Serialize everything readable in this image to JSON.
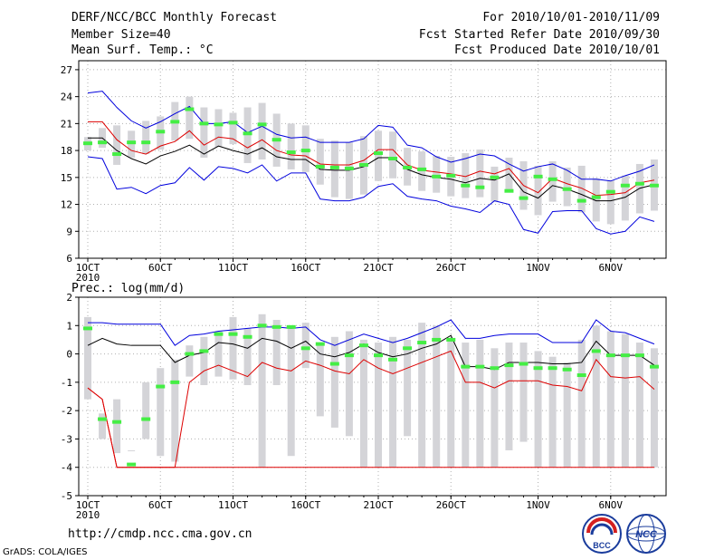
{
  "header": {
    "title": "DERF/NCC/BCC Monthly Forecast",
    "member_size": "Member Size=40",
    "variable": "Mean Surf. Temp.: °C",
    "period": "For 2010/10/01-2010/11/09",
    "started": "Fcst Started Refer Date 2010/09/30",
    "produced": "Fcst Produced Date 2010/10/01"
  },
  "footer": {
    "url": "http://cmdp.ncc.cma.gov.cn",
    "credit": "GrADS: COLA/IGES",
    "logo1_text": "BCC",
    "logo2_text": "NCC"
  },
  "colors": {
    "grid": "#b0b0b0",
    "bar": "#d4d4d8",
    "mean": "#44ee44",
    "upper": "#0000dd",
    "middle": "#000000",
    "lower": "#dd0000"
  },
  "chart_data": [
    {
      "type": "box",
      "title": "Mean Surf. Temp.: °C",
      "x_ticks": [
        "1OCT",
        "6OCT",
        "11OCT",
        "16OCT",
        "21OCT",
        "26OCT",
        "1NOV",
        "6NOV"
      ],
      "x_tick_days": [
        1,
        6,
        11,
        16,
        21,
        26,
        32,
        37
      ],
      "x_sublabel": "2010",
      "ylim": [
        6,
        28
      ],
      "yticks": [
        6,
        9,
        12,
        15,
        18,
        21,
        24,
        27
      ],
      "days": [
        1,
        2,
        3,
        4,
        5,
        6,
        7,
        8,
        9,
        10,
        11,
        12,
        13,
        14,
        15,
        16,
        17,
        18,
        19,
        20,
        21,
        22,
        23,
        24,
        25,
        26,
        27,
        28,
        29,
        30,
        31,
        32,
        33,
        34,
        35,
        36,
        37,
        38,
        39,
        40
      ],
      "bar_low": [
        18.0,
        18.3,
        16.4,
        17.2,
        17.6,
        18.1,
        19.1,
        19.3,
        17.2,
        18.4,
        18.7,
        16.6,
        17.0,
        16.2,
        15.9,
        15.6,
        14.2,
        12.8,
        12.6,
        13.1,
        14.6,
        14.9,
        14.1,
        13.5,
        13.3,
        12.9,
        12.7,
        12.8,
        12.3,
        13.6,
        11.4,
        10.8,
        12.3,
        11.8,
        11.1,
        10.1,
        9.8,
        10.2,
        11.0,
        11.3
      ],
      "bar_high": [
        19.5,
        20.5,
        20.8,
        20.2,
        21.3,
        21.8,
        23.4,
        24.0,
        22.8,
        22.6,
        22.2,
        22.8,
        23.3,
        22.1,
        21.0,
        20.8,
        19.3,
        19.1,
        18.9,
        19.6,
        20.2,
        20.1,
        18.3,
        17.9,
        17.4,
        17.3,
        17.7,
        18.1,
        16.2,
        17.2,
        16.8,
        16.3,
        16.8,
        16.1,
        16.3,
        14.9,
        14.7,
        15.2,
        16.5,
        17.0
      ],
      "ens_mean": [
        18.8,
        18.9,
        17.6,
        18.9,
        18.9,
        20.1,
        21.2,
        22.6,
        21.0,
        20.9,
        21.1,
        19.9,
        20.9,
        19.2,
        17.8,
        18.0,
        16.2,
        16.1,
        16.0,
        16.4,
        17.7,
        17.1,
        16.1,
        15.9,
        15.1,
        15.2,
        14.1,
        13.9,
        15.0,
        13.5,
        12.7,
        15.1,
        14.8,
        13.7,
        12.4,
        12.8,
        13.4,
        14.1,
        14.3,
        14.1
      ],
      "series": [
        {
          "name": "upper",
          "color": "#0000dd",
          "values": [
            24.4,
            24.6,
            22.8,
            21.3,
            20.5,
            21.2,
            22.1,
            22.9,
            21.0,
            21.0,
            21.2,
            20.0,
            20.7,
            19.8,
            19.4,
            19.5,
            18.9,
            18.9,
            18.9,
            19.3,
            20.8,
            20.6,
            18.6,
            18.3,
            17.3,
            16.7,
            17.1,
            17.6,
            17.4,
            16.5,
            15.7,
            16.2,
            16.5,
            15.8,
            14.8,
            14.8,
            14.6,
            15.2,
            15.7,
            16.4
          ]
        },
        {
          "name": "middle",
          "color": "#000000",
          "values": [
            19.4,
            19.4,
            18.0,
            17.1,
            16.5,
            17.4,
            17.9,
            18.6,
            17.6,
            18.5,
            18.0,
            17.6,
            18.3,
            17.3,
            17.0,
            17.0,
            15.9,
            15.8,
            15.8,
            16.2,
            17.2,
            17.2,
            15.9,
            15.3,
            15.0,
            14.8,
            14.4,
            14.9,
            14.7,
            15.4,
            13.4,
            12.7,
            14.1,
            13.7,
            13.1,
            12.4,
            12.4,
            12.8,
            13.8,
            14.2
          ]
        },
        {
          "name": "lower",
          "color": "#dd0000",
          "values": [
            21.2,
            21.2,
            19.2,
            18.0,
            17.6,
            18.5,
            19.0,
            20.2,
            18.6,
            19.5,
            19.3,
            18.3,
            19.2,
            18.0,
            17.5,
            17.4,
            16.5,
            16.4,
            16.4,
            16.9,
            18.1,
            18.1,
            16.4,
            15.8,
            15.6,
            15.4,
            15.1,
            15.7,
            15.4,
            16.0,
            14.1,
            13.3,
            14.9,
            14.3,
            13.8,
            13.0,
            13.1,
            13.3,
            14.4,
            14.7
          ]
        },
        {
          "name": "lowest",
          "color": "#0000dd",
          "values": [
            17.3,
            17.1,
            13.7,
            13.9,
            13.2,
            14.1,
            14.4,
            16.1,
            14.7,
            16.2,
            16.0,
            15.5,
            16.4,
            14.6,
            15.5,
            15.5,
            12.6,
            12.4,
            12.4,
            12.8,
            14.0,
            14.3,
            12.9,
            12.6,
            12.4,
            11.8,
            11.5,
            11.1,
            12.4,
            12.0,
            9.2,
            8.8,
            11.2,
            11.3,
            11.3,
            9.3,
            8.7,
            9.0,
            10.6,
            10.1
          ]
        }
      ]
    },
    {
      "type": "box",
      "title": "Prec.: log(mm/d)",
      "x_ticks": [
        "1OCT",
        "6OCT",
        "11OCT",
        "16OCT",
        "21OCT",
        "26OCT",
        "1NOV",
        "6NOV"
      ],
      "x_tick_days": [
        1,
        6,
        11,
        16,
        21,
        26,
        32,
        37
      ],
      "x_sublabel": "2010",
      "ylim": [
        -5,
        2
      ],
      "yticks": [
        -5,
        -4,
        -3,
        -2,
        -1,
        0,
        1,
        2
      ],
      "days": [
        1,
        2,
        3,
        4,
        5,
        6,
        7,
        8,
        9,
        10,
        11,
        12,
        13,
        14,
        15,
        16,
        17,
        18,
        19,
        20,
        21,
        22,
        23,
        24,
        25,
        26,
        27,
        28,
        29,
        30,
        31,
        32,
        33,
        34,
        35,
        36,
        37,
        38,
        39,
        40
      ],
      "bar_low": [
        -1.6,
        -3.0,
        -3.5,
        -3.3,
        -3.0,
        -3.6,
        -3.8,
        -0.8,
        -1.1,
        -0.8,
        -0.9,
        -1.1,
        -4.0,
        -1.1,
        -3.6,
        -0.5,
        -2.2,
        -2.6,
        -2.9,
        -4.0,
        -4.0,
        -4.0,
        -2.9,
        -4.0,
        -4.0,
        -4.0,
        -4.0,
        -4.0,
        -4.0,
        -3.4,
        -3.1,
        -4.0,
        -4.0,
        -4.0,
        -4.0,
        -4.0,
        -4.0,
        -4.0,
        -4.0,
        -4.0
      ],
      "bar_high": [
        1.3,
        -2.1,
        -1.6,
        -3.4,
        -1.0,
        -0.5,
        -0.2,
        0.3,
        0.6,
        0.8,
        1.3,
        0.9,
        1.4,
        1.2,
        0.9,
        1.1,
        0.3,
        0.6,
        0.8,
        0.5,
        0.4,
        0.6,
        0.5,
        1.1,
        1.0,
        0.5,
        0.4,
        0.5,
        0.2,
        0.4,
        0.4,
        0.1,
        -0.1,
        -0.3,
        0.5,
        1.0,
        0.8,
        0.7,
        0.4,
        0.2
      ],
      "ens_mean": [
        0.9,
        -2.3,
        -2.4,
        -3.9,
        -2.3,
        -1.15,
        -1.0,
        0.0,
        0.1,
        0.7,
        0.7,
        0.6,
        1.0,
        0.95,
        0.95,
        0.2,
        0.35,
        -0.35,
        -0.05,
        0.3,
        -0.05,
        -0.2,
        0.2,
        0.4,
        0.5,
        0.5,
        -0.45,
        -0.45,
        -0.5,
        -0.4,
        -0.35,
        -0.5,
        -0.5,
        -0.55,
        -0.75,
        0.1,
        -0.05,
        -0.05,
        -0.05,
        -0.45
      ],
      "series": [
        {
          "name": "upper",
          "color": "#0000dd",
          "values": [
            1.1,
            1.1,
            1.05,
            1.05,
            1.05,
            1.05,
            0.3,
            0.65,
            0.7,
            0.8,
            0.85,
            0.9,
            0.95,
            0.95,
            0.9,
            0.95,
            0.5,
            0.3,
            0.5,
            0.7,
            0.55,
            0.4,
            0.55,
            0.75,
            0.95,
            1.2,
            0.55,
            0.55,
            0.65,
            0.7,
            0.7,
            0.7,
            0.4,
            0.4,
            0.4,
            1.2,
            0.8,
            0.75,
            0.55,
            0.35
          ]
        },
        {
          "name": "middle",
          "color": "#000000",
          "values": [
            0.3,
            0.55,
            0.35,
            0.3,
            0.3,
            0.3,
            -0.3,
            -0.05,
            0.05,
            0.4,
            0.35,
            0.2,
            0.55,
            0.45,
            0.2,
            0.45,
            0.0,
            -0.1,
            0.05,
            0.35,
            0.05,
            -0.1,
            0.0,
            0.2,
            0.35,
            0.65,
            -0.45,
            -0.45,
            -0.55,
            -0.3,
            -0.3,
            -0.3,
            -0.35,
            -0.35,
            -0.3,
            0.45,
            -0.05,
            -0.05,
            -0.05,
            -0.4
          ]
        },
        {
          "name": "lower",
          "color": "#dd0000",
          "values": [
            -1.2,
            -1.6,
            -4.0,
            -4.0,
            -4.0,
            -4.0,
            -4.0,
            -1.0,
            -0.6,
            -0.4,
            -0.6,
            -0.8,
            -0.3,
            -0.5,
            -0.6,
            -0.25,
            -0.4,
            -0.6,
            -0.7,
            -0.2,
            -0.5,
            -0.7,
            -0.5,
            -0.3,
            -0.1,
            0.1,
            -1.0,
            -1.0,
            -1.2,
            -0.95,
            -0.95,
            -0.95,
            -1.1,
            -1.15,
            -1.3,
            -0.2,
            -0.8,
            -0.85,
            -0.8,
            -1.25
          ]
        },
        {
          "name": "lowest",
          "color": "#dd0000",
          "values": [
            -1.2,
            -1.6,
            -4.0,
            -4.0,
            -4.0,
            -4.0,
            -4.0,
            -4.0,
            -4.0,
            -4.0,
            -4.0,
            -4.0,
            -4.0,
            -4.0,
            -4.0,
            -4.0,
            -4.0,
            -4.0,
            -4.0,
            -4.0,
            -4.0,
            -4.0,
            -4.0,
            -4.0,
            -4.0,
            -4.0,
            -4.0,
            -4.0,
            -4.0,
            -4.0,
            -4.0,
            -4.0,
            -4.0,
            -4.0,
            -4.0,
            -4.0,
            -4.0,
            -4.0,
            -4.0,
            -4.0
          ]
        }
      ]
    }
  ]
}
